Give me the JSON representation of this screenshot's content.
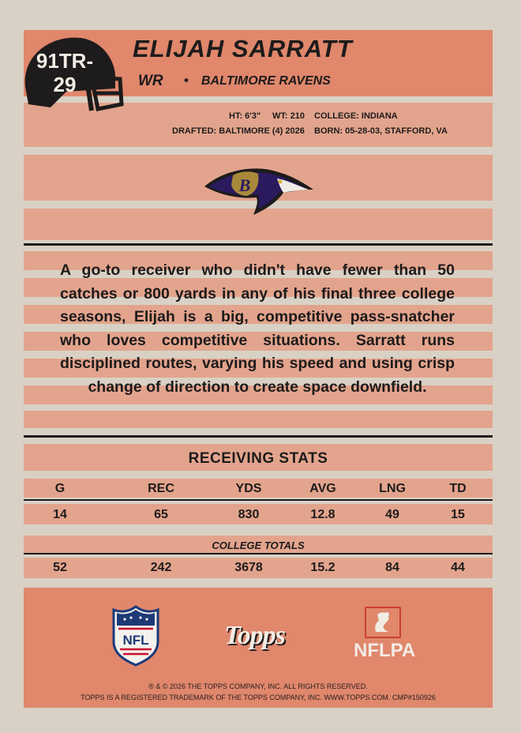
{
  "card": {
    "number": "91TR-29",
    "number_line1": "91TR-",
    "number_line2": "29",
    "player_name": "ELIJAH SARRATT",
    "position": "WR",
    "separator": "•",
    "team": "BALTIMORE RAVENS"
  },
  "bio": {
    "height": "HT: 6'3\"",
    "weight": "WT: 210",
    "college": "COLLEGE: INDIANA",
    "drafted": "DRAFTED: BALTIMORE (4) 2026",
    "born": "BORN: 05-28-03, STAFFORD, VA"
  },
  "blurb": "A go-to receiver who didn't have fewer than 50 catches or 800 yards in any of his final three college seasons, Elijah is a big, competitive pass-snatcher who loves competitive situations. Sarratt runs disciplined routes, varying his speed and using crisp change of direction to create space downfield.",
  "stats": {
    "title": "RECEIVING STATS",
    "headers": [
      "G",
      "REC",
      "YDS",
      "AVG",
      "LNG",
      "TD"
    ],
    "season": [
      "14",
      "65",
      "830",
      "12.8",
      "49",
      "15"
    ],
    "totals_label": "COLLEGE TOTALS",
    "totals": [
      "52",
      "242",
      "3678",
      "15.2",
      "84",
      "44"
    ]
  },
  "logos": {
    "nfl": "NFL",
    "topps": "Topps",
    "nflpa": "NFLPA",
    "team_logo_letter": "B"
  },
  "legal": {
    "line1": "® & © 2026 THE TOPPS COMPANY, INC. ALL RIGHTS RESERVED.",
    "line2": "TOPPS IS A REGISTERED TRADEMARK OF THE TOPPS COMPANY, INC. WWW.TOPPS.COM. CMP#150926"
  },
  "colors": {
    "band": "#e0876c",
    "stripe": "#e3a48d",
    "paper": "#d9d1c5",
    "ink": "#1d1b1b",
    "ravens_purple": "#2b1a5e",
    "ravens_gold": "#a8893a"
  }
}
